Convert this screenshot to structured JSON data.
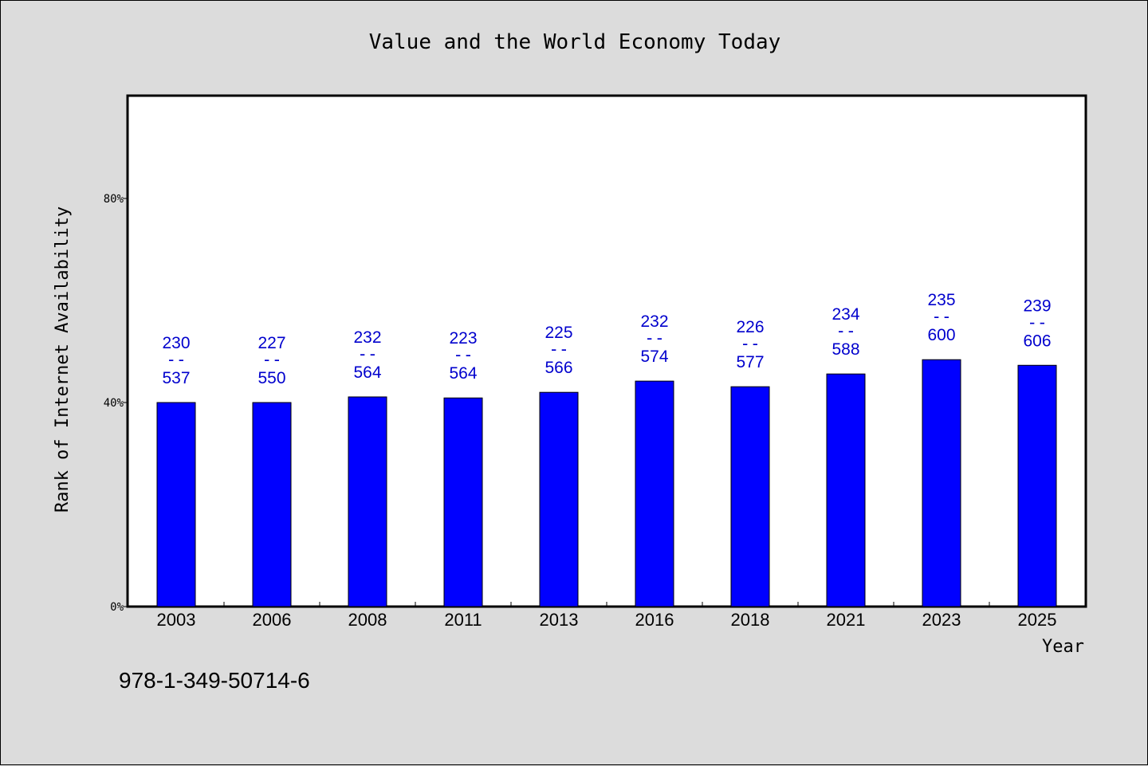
{
  "chart_data": {
    "type": "bar",
    "title": "Value and the World Economy Today",
    "xlabel": "Year",
    "ylabel": "Rank of Internet Availability",
    "ylim": [
      0,
      100
    ],
    "yticks": [
      0,
      40,
      80
    ],
    "ytick_labels": [
      "0%",
      "40%",
      "80%"
    ],
    "categories": [
      "2003",
      "2006",
      "2008",
      "2011",
      "2013",
      "2016",
      "2018",
      "2021",
      "2023",
      "2025"
    ],
    "values": [
      40,
      40,
      41.1,
      40.9,
      42,
      44.2,
      43.1,
      45.6,
      48.4,
      47.3
    ],
    "labels_top": [
      "230",
      "227",
      "232",
      "223",
      "225",
      "232",
      "226",
      "234",
      "235",
      "239"
    ],
    "labels_sep": "--",
    "labels_bottom": [
      "537",
      "550",
      "564",
      "564",
      "566",
      "574",
      "577",
      "588",
      "600",
      "606"
    ],
    "bar_color": "#0000ff",
    "label_color": "#0000cd",
    "grid": false
  },
  "footnote": "978-1-349-50714-6"
}
